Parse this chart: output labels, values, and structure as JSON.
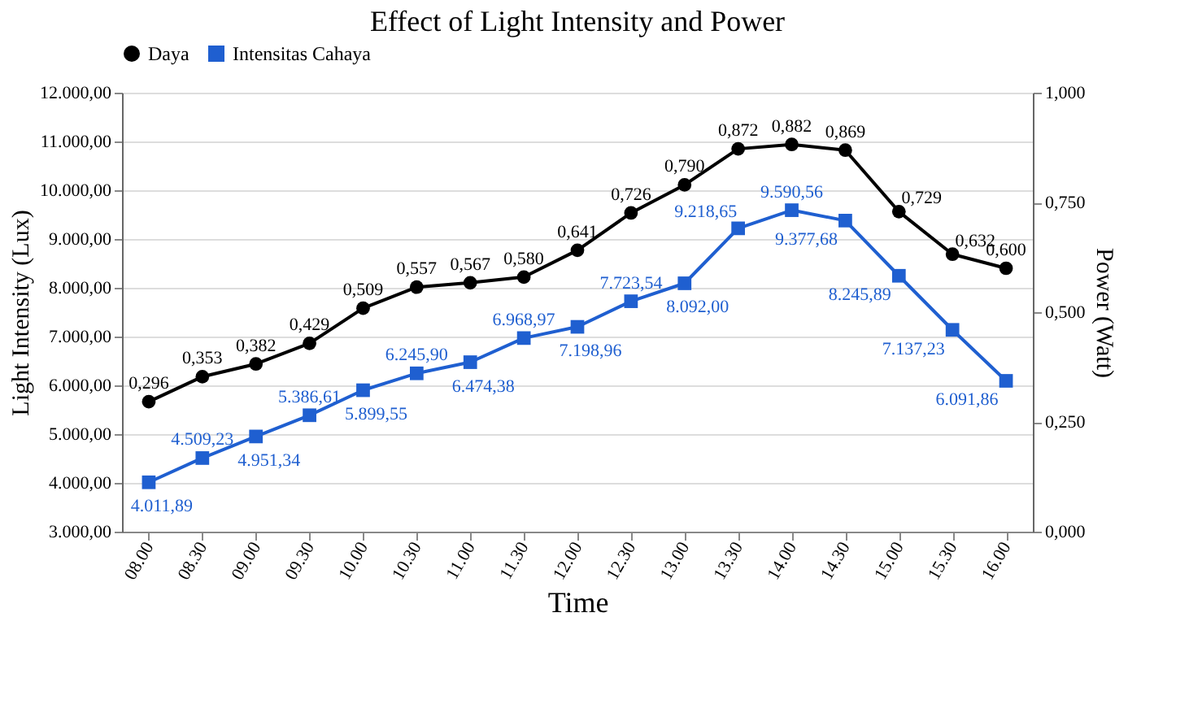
{
  "chart_data": {
    "type": "line",
    "title": "Effect of Light Intensity and Power",
    "xlabel": "Time",
    "ylabel": "Light Intensity (Lux)",
    "y2label": "Power (Watt)",
    "categories": [
      "08.00",
      "08.30",
      "09.00",
      "09.30",
      "10.00",
      "10.30",
      "11.00",
      "11.30",
      "12.00",
      "12.30",
      "13.00",
      "13.30",
      "14.00",
      "14.30",
      "15.00",
      "15.30",
      "16.00"
    ],
    "series": [
      {
        "name": "Daya",
        "color": "#000000",
        "axis": "y2",
        "marker": "circle",
        "values": [
          0.296,
          0.353,
          0.382,
          0.429,
          0.509,
          0.557,
          0.567,
          0.58,
          0.641,
          0.726,
          0.79,
          0.872,
          0.882,
          0.869,
          0.729,
          0.632,
          0.6
        ],
        "value_labels": [
          "0,296",
          "0,353",
          "0,382",
          "0,429",
          "0,509",
          "0,557",
          "0,567",
          "0,580",
          "0,641",
          "0,726",
          "0,790",
          "0,872",
          "0,882",
          "0,869",
          "0,729",
          "0,632",
          "0,600"
        ]
      },
      {
        "name": "Intensitas Cahaya",
        "color": "#1f5fd0",
        "marker": "square",
        "values": [
          4011.89,
          4509.23,
          4951.34,
          5386.61,
          5899.55,
          6245.9,
          6474.38,
          6968.97,
          7198.96,
          7723.54,
          8092.0,
          9218.65,
          9590.56,
          9377.68,
          8245.89,
          7137.23,
          6091.86
        ],
        "value_labels": [
          "4.011,89",
          "4.509,23",
          "4.951,34",
          "5.386,61",
          "5.899,55",
          "6.245,90",
          "6.474,38",
          "6.968,97",
          "7.198,96",
          "7.723,54",
          "8.092,00",
          "9.218,65",
          "9.590,56",
          "9.377,68",
          "8.245,89",
          "7.137,23",
          "6.091,86"
        ]
      }
    ],
    "ylim": [
      3000,
      12000
    ],
    "yticks": [
      {
        "value": 3000,
        "label": "3.000,00"
      },
      {
        "value": 4000,
        "label": "4.000,00"
      },
      {
        "value": 5000,
        "label": "5.000,00"
      },
      {
        "value": 6000,
        "label": "6.000,00"
      },
      {
        "value": 7000,
        "label": "7.000,00"
      },
      {
        "value": 8000,
        "label": "8.000,00"
      },
      {
        "value": 9000,
        "label": "9.000,00"
      },
      {
        "value": 10000,
        "label": "10.000,00"
      },
      {
        "value": 11000,
        "label": "11.000,00"
      },
      {
        "value": 12000,
        "label": "12.000,00"
      }
    ],
    "y2lim": [
      0,
      1
    ],
    "y2ticks": [
      {
        "value": 0,
        "label": "0,000"
      },
      {
        "value": 0.25,
        "label": "0,250"
      },
      {
        "value": 0.5,
        "label": "0,500"
      },
      {
        "value": 0.75,
        "label": "0,750"
      },
      {
        "value": 1,
        "label": "1,000"
      }
    ],
    "grid": "y",
    "legend": "top",
    "line_style": "solid"
  }
}
